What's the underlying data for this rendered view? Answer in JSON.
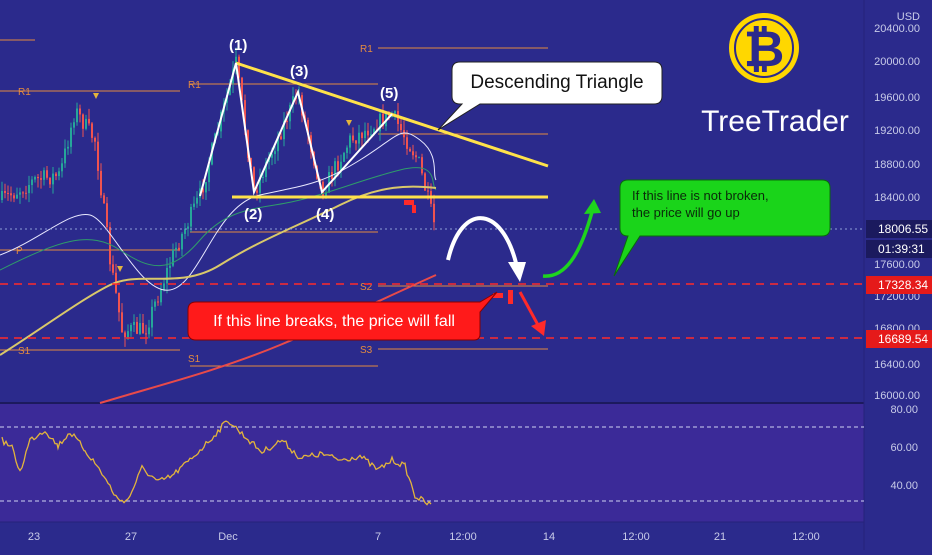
{
  "currency": "USD",
  "price_axis": {
    "ticks": [
      "20400.00",
      "20000.00",
      "19600.00",
      "19200.00",
      "18800.00",
      "18400.00",
      "17600.00",
      "17200.00",
      "16800.00",
      "16400.00",
      "16000.00"
    ],
    "current_price": "18006.55",
    "countdown": "01:39:31",
    "level_upper": "17328.34",
    "level_lower": "16689.54"
  },
  "rsi_axis": {
    "ticks": [
      "80.00",
      "60.00",
      "40.00"
    ]
  },
  "time_axis": {
    "labels": [
      "23",
      "27",
      "Dec",
      "7",
      "12:00",
      "14",
      "12:00",
      "21",
      "12:00"
    ]
  },
  "pivots": {
    "r1": "R1",
    "p": "P",
    "s1": "S1",
    "s2": "S2",
    "s3": "S3"
  },
  "waves": [
    "(1)",
    "(2)",
    "(3)",
    "(4)",
    "(5)"
  ],
  "callouts": {
    "triangle": "Descending Triangle",
    "bullish": "If this line is not broken,\n the price will go up",
    "bearish": "If this line breaks, the price will fall"
  },
  "brand": {
    "name": "TreeTrader",
    "coin_symbol": "₿"
  },
  "colors": {
    "background": "#2b2a8c",
    "rsi_background": "#3b2a98",
    "triangle": "#ffe24a",
    "level": "#ff2a2a",
    "bull": "#1ed41e",
    "bear_box": "#ff1a1a",
    "bull_box": "#1ad41a",
    "coin": "#ffd700"
  }
}
